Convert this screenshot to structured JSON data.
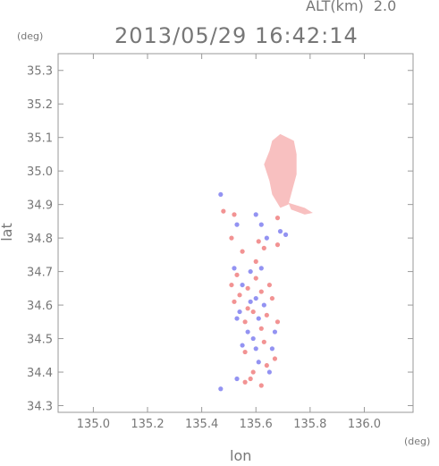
{
  "header": {
    "alt_label": "ALT(km)",
    "alt_value": "2.0",
    "timestamp": "2013/05/29 16:42:14",
    "y_unit": "(deg)",
    "x_unit": "(deg)"
  },
  "chart_data": {
    "type": "scatter",
    "title": "2013/05/29 16:42:14",
    "xlabel": "lon",
    "ylabel": "lat",
    "xlim": [
      134.87,
      136.18
    ],
    "ylim": [
      34.28,
      35.35
    ],
    "x_ticks": [
      135.0,
      135.2,
      135.4,
      135.6,
      135.8,
      136.0
    ],
    "x_tick_labels": [
      "135.0",
      "135.2",
      "135.4",
      "135.6",
      "135.8",
      "136.0"
    ],
    "y_ticks": [
      34.3,
      34.4,
      34.5,
      34.6,
      34.7,
      34.8,
      34.9,
      35.0,
      35.1,
      35.2,
      35.3
    ],
    "y_tick_labels": [
      "34.3",
      "34.4",
      "34.5",
      "34.6",
      "34.7",
      "34.8",
      "34.9",
      "35.0",
      "35.1",
      "35.2",
      "35.3"
    ],
    "colors": {
      "positive": "#f08080",
      "positive_light": "#f8c0c0",
      "negative": "#8080f0",
      "frame": "#999999"
    },
    "regions": [
      {
        "name": "north-cluster",
        "polygon": [
          [
            135.66,
            35.09
          ],
          [
            135.69,
            35.11
          ],
          [
            135.74,
            35.09
          ],
          [
            135.75,
            35.05
          ],
          [
            135.75,
            34.99
          ],
          [
            135.73,
            34.93
          ],
          [
            135.72,
            34.9
          ],
          [
            135.69,
            34.89
          ],
          [
            135.66,
            34.93
          ],
          [
            135.65,
            34.97
          ],
          [
            135.63,
            35.02
          ],
          [
            135.65,
            35.06
          ]
        ],
        "sign": "positive_light"
      },
      {
        "name": "tail",
        "polygon": [
          [
            135.72,
            34.905
          ],
          [
            135.78,
            34.89
          ],
          [
            135.81,
            34.875
          ],
          [
            135.78,
            34.87
          ],
          [
            135.73,
            34.885
          ]
        ],
        "sign": "positive_light"
      }
    ],
    "points": [
      {
        "x": 135.52,
        "y": 34.87,
        "s": "p"
      },
      {
        "x": 135.53,
        "y": 34.84,
        "s": "n"
      },
      {
        "x": 135.51,
        "y": 34.8,
        "s": "p"
      },
      {
        "x": 135.6,
        "y": 34.87,
        "s": "n"
      },
      {
        "x": 135.62,
        "y": 34.84,
        "s": "n"
      },
      {
        "x": 135.64,
        "y": 34.8,
        "s": "n"
      },
      {
        "x": 135.61,
        "y": 34.79,
        "s": "p"
      },
      {
        "x": 135.63,
        "y": 34.77,
        "s": "p"
      },
      {
        "x": 135.68,
        "y": 34.86,
        "s": "p"
      },
      {
        "x": 135.69,
        "y": 34.82,
        "s": "n"
      },
      {
        "x": 135.68,
        "y": 34.78,
        "s": "p"
      },
      {
        "x": 135.71,
        "y": 34.81,
        "s": "n"
      },
      {
        "x": 135.47,
        "y": 34.93,
        "s": "n"
      },
      {
        "x": 135.48,
        "y": 34.88,
        "s": "p"
      },
      {
        "x": 135.55,
        "y": 34.76,
        "s": "p"
      },
      {
        "x": 135.52,
        "y": 34.71,
        "s": "n"
      },
      {
        "x": 135.53,
        "y": 34.69,
        "s": "p"
      },
      {
        "x": 135.55,
        "y": 34.66,
        "s": "n"
      },
      {
        "x": 135.54,
        "y": 34.63,
        "s": "p"
      },
      {
        "x": 135.57,
        "y": 34.65,
        "s": "p"
      },
      {
        "x": 135.58,
        "y": 34.61,
        "s": "n"
      },
      {
        "x": 135.6,
        "y": 34.68,
        "s": "p"
      },
      {
        "x": 135.62,
        "y": 34.64,
        "s": "p"
      },
      {
        "x": 135.63,
        "y": 34.6,
        "s": "n"
      },
      {
        "x": 135.65,
        "y": 34.66,
        "s": "p"
      },
      {
        "x": 135.66,
        "y": 34.62,
        "s": "p"
      },
      {
        "x": 135.59,
        "y": 34.58,
        "s": "p"
      },
      {
        "x": 135.61,
        "y": 34.56,
        "s": "n"
      },
      {
        "x": 135.56,
        "y": 34.55,
        "s": "p"
      },
      {
        "x": 135.54,
        "y": 34.58,
        "s": "n"
      },
      {
        "x": 135.52,
        "y": 34.61,
        "s": "p"
      },
      {
        "x": 135.64,
        "y": 34.57,
        "s": "p"
      },
      {
        "x": 135.57,
        "y": 34.52,
        "s": "n"
      },
      {
        "x": 135.59,
        "y": 34.5,
        "s": "n"
      },
      {
        "x": 135.62,
        "y": 34.53,
        "s": "p"
      },
      {
        "x": 135.55,
        "y": 34.48,
        "s": "n"
      },
      {
        "x": 135.56,
        "y": 34.46,
        "s": "p"
      },
      {
        "x": 135.6,
        "y": 34.47,
        "s": "n"
      },
      {
        "x": 135.63,
        "y": 34.49,
        "s": "p"
      },
      {
        "x": 135.66,
        "y": 34.47,
        "s": "n"
      },
      {
        "x": 135.67,
        "y": 34.44,
        "s": "p"
      },
      {
        "x": 135.64,
        "y": 34.42,
        "s": "p"
      },
      {
        "x": 135.65,
        "y": 34.4,
        "s": "n"
      },
      {
        "x": 135.61,
        "y": 34.43,
        "s": "n"
      },
      {
        "x": 135.59,
        "y": 34.4,
        "s": "p"
      },
      {
        "x": 135.58,
        "y": 34.38,
        "s": "p"
      },
      {
        "x": 135.56,
        "y": 34.37,
        "s": "p"
      },
      {
        "x": 135.53,
        "y": 34.38,
        "s": "n"
      },
      {
        "x": 135.47,
        "y": 34.35,
        "s": "n"
      },
      {
        "x": 135.62,
        "y": 34.36,
        "s": "p"
      },
      {
        "x": 135.68,
        "y": 34.55,
        "s": "p"
      },
      {
        "x": 135.67,
        "y": 34.52,
        "s": "n"
      },
      {
        "x": 135.58,
        "y": 34.7,
        "s": "n"
      },
      {
        "x": 135.6,
        "y": 34.73,
        "s": "p"
      },
      {
        "x": 135.62,
        "y": 34.71,
        "s": "n"
      },
      {
        "x": 135.51,
        "y": 34.66,
        "s": "p"
      },
      {
        "x": 135.53,
        "y": 34.56,
        "s": "n"
      },
      {
        "x": 135.57,
        "y": 34.59,
        "s": "p"
      },
      {
        "x": 135.6,
        "y": 34.62,
        "s": "n"
      }
    ]
  }
}
